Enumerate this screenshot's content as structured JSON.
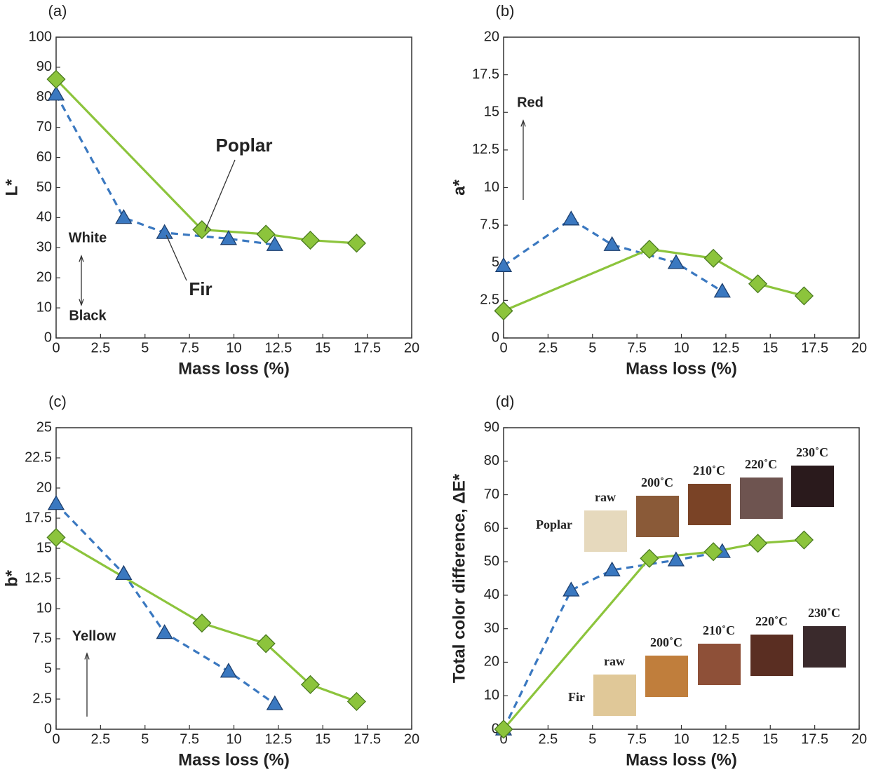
{
  "chart_data": [
    {
      "type": "line",
      "title": "(a)",
      "x_label": "Mass loss (%)",
      "y_label": "L*",
      "xlim": [
        0,
        20
      ],
      "xticks": [
        0,
        2.5,
        5,
        7.5,
        10,
        12.5,
        15,
        17.5,
        20
      ],
      "ylim": [
        0,
        100
      ],
      "yticks": [
        0,
        10,
        20,
        30,
        40,
        50,
        60,
        70,
        80,
        90,
        100
      ],
      "series": [
        {
          "name": "Fir",
          "color": "#3a78c0",
          "marker": "triangle",
          "dashed": true,
          "x": [
            0,
            3.8,
            6.1,
            9.7,
            12.3
          ],
          "values": [
            81,
            40,
            35,
            33,
            31
          ]
        },
        {
          "name": "Poplar",
          "color": "#8cc43c",
          "marker": "diamond",
          "dashed": false,
          "x": [
            0,
            8.2,
            11.8,
            14.3,
            16.9
          ],
          "values": [
            86,
            36,
            34.5,
            32.5,
            31.5
          ]
        }
      ],
      "annotations": [
        "White",
        "Black"
      ]
    },
    {
      "type": "line",
      "title": "(b)",
      "x_label": "Mass loss (%)",
      "y_label": "a*",
      "xlim": [
        0,
        20
      ],
      "xticks": [
        0,
        2.5,
        5,
        7.5,
        10,
        12.5,
        15,
        17.5,
        20
      ],
      "ylim": [
        0,
        20
      ],
      "yticks": [
        0,
        2.5,
        5,
        7.5,
        10,
        12.5,
        15,
        17.5,
        20
      ],
      "series": [
        {
          "color": "#3a78c0",
          "marker": "triangle",
          "dashed": true,
          "x": [
            0,
            3.8,
            6.1,
            9.7,
            12.3
          ],
          "values": [
            4.8,
            7.9,
            6.2,
            5.0,
            3.1
          ]
        },
        {
          "color": "#8cc43c",
          "marker": "diamond",
          "dashed": false,
          "x": [
            0,
            8.2,
            11.8,
            14.3,
            16.9
          ],
          "values": [
            1.8,
            5.9,
            5.3,
            3.6,
            2.8
          ]
        }
      ],
      "annotations": [
        "Red"
      ]
    },
    {
      "type": "line",
      "title": "(c)",
      "x_label": "Mass loss (%)",
      "y_label": "b*",
      "xlim": [
        0,
        20
      ],
      "xticks": [
        0,
        2.5,
        5,
        7.5,
        10,
        12.5,
        15,
        17.5,
        20
      ],
      "ylim": [
        0,
        25
      ],
      "yticks": [
        0,
        2.5,
        5,
        7.5,
        10,
        12.5,
        15,
        17.5,
        20,
        22.5,
        25
      ],
      "series": [
        {
          "color": "#3a78c0",
          "marker": "triangle",
          "dashed": true,
          "x": [
            0,
            3.8,
            6.1,
            9.7,
            12.3
          ],
          "values": [
            18.7,
            12.9,
            8.0,
            4.8,
            2.1
          ]
        },
        {
          "color": "#8cc43c",
          "marker": "diamond",
          "dashed": false,
          "x": [
            0,
            8.2,
            11.8,
            14.3,
            16.9
          ],
          "values": [
            15.9,
            8.8,
            7.1,
            3.7,
            2.3
          ]
        }
      ],
      "annotations": [
        "Yellow"
      ]
    },
    {
      "type": "line",
      "title": "(d)",
      "x_label": "Mass loss (%)",
      "y_label": "Total color difference, ΔE*",
      "xlim": [
        0,
        20
      ],
      "xticks": [
        0,
        2.5,
        5,
        7.5,
        10,
        12.5,
        15,
        17.5,
        20
      ],
      "ylim": [
        0,
        90
      ],
      "yticks": [
        0,
        10,
        20,
        30,
        40,
        50,
        60,
        70,
        80,
        90
      ],
      "series": [
        {
          "color": "#3a78c0",
          "marker": "triangle",
          "dashed": true,
          "x": [
            0,
            3.8,
            6.1,
            9.7,
            12.3
          ],
          "values": [
            0,
            41.5,
            47.5,
            50.5,
            53
          ]
        },
        {
          "color": "#8cc43c",
          "marker": "diamond",
          "dashed": false,
          "x": [
            0,
            8.2,
            11.8,
            14.3,
            16.9
          ],
          "values": [
            0,
            51,
            53,
            55.5,
            56.5
          ]
        }
      ],
      "inset": [
        {
          "label": "Poplar",
          "swatches": [
            {
              "label": "raw",
              "color": "#e6d9bd"
            },
            {
              "label": "200˚C",
              "color": "#8a5a38"
            },
            {
              "label": "210˚C",
              "color": "#7a4326"
            },
            {
              "label": "220˚C",
              "color": "#6e5450"
            },
            {
              "label": "230˚C",
              "color": "#2a1a1c"
            }
          ]
        },
        {
          "label": "Fir",
          "swatches": [
            {
              "label": "raw",
              "color": "#e0c898"
            },
            {
              "label": "200˚C",
              "color": "#c07e3c"
            },
            {
              "label": "210˚C",
              "color": "#8e5038"
            },
            {
              "label": "220˚C",
              "color": "#5a2e22"
            },
            {
              "label": "230˚C",
              "color": "#3a2a2c"
            }
          ]
        }
      ]
    }
  ]
}
